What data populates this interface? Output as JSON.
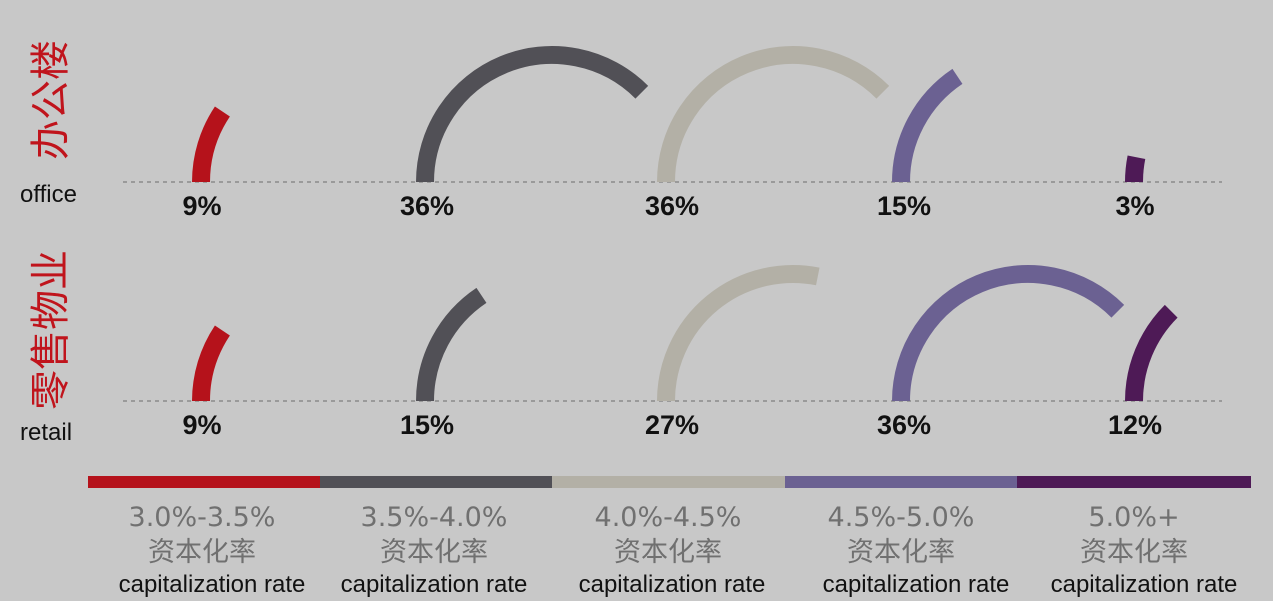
{
  "chart_data": {
    "type": "radial-arc",
    "colors": [
      "#b5121b",
      "#515056",
      "#b3b0a6",
      "#6b6192",
      "#4e1a56"
    ],
    "legend": [
      {
        "range": "3.0%-3.5%",
        "cn": "资本化率",
        "en": "capitalization rate"
      },
      {
        "range": "3.5%-4.0%",
        "cn": "资本化率",
        "en": "capitalization rate"
      },
      {
        "range": "4.0%-4.5%",
        "cn": "资本化率",
        "en": "capitalization rate"
      },
      {
        "range": "4.5%-5.0%",
        "cn": "资本化率",
        "en": "capitalization rate"
      },
      {
        "range": "5.0%+",
        "cn": "资本化率",
        "en": "capitalization rate"
      }
    ],
    "rows": [
      {
        "label_cn": "办公楼",
        "label_en": "office",
        "values": [
          9,
          36,
          36,
          15,
          3
        ],
        "labels": [
          "9%",
          "36%",
          "36%",
          "15%",
          "3%"
        ]
      },
      {
        "label_cn": "零售物业",
        "label_en": "retail",
        "values": [
          9,
          15,
          27,
          36,
          12
        ],
        "labels": [
          "9%",
          "15%",
          "27%",
          "36%",
          "12%"
        ]
      }
    ]
  }
}
